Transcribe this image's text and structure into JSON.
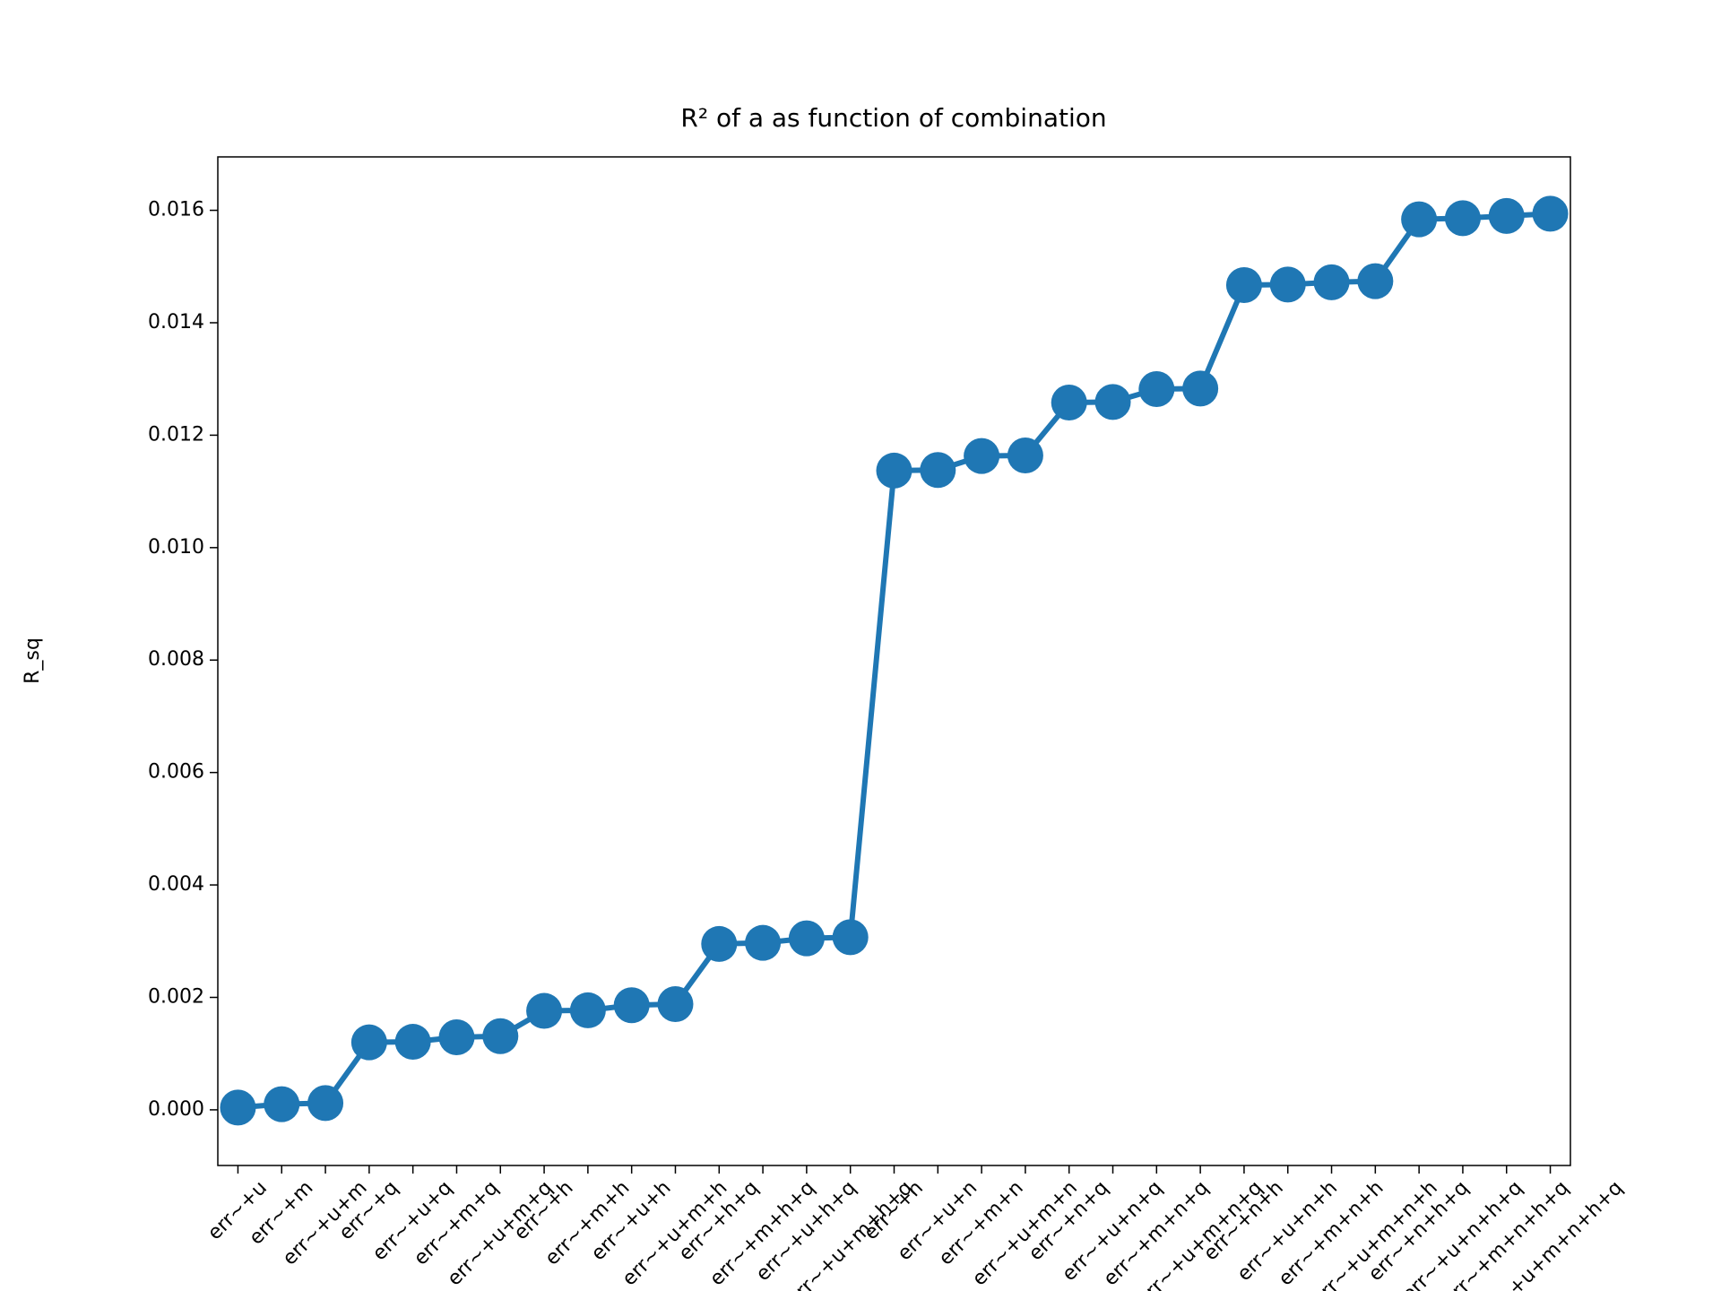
{
  "chart_data": {
    "type": "line",
    "title": "R² of a as function of combination",
    "y_label": "R_sq",
    "categories": [
      "err~+u",
      "err~+m",
      "err~+u+m",
      "err~+q",
      "err~+u+q",
      "err~+m+q",
      "err~+u+m+q",
      "err~+h",
      "err~+m+h",
      "err~+u+h",
      "err~+u+m+h",
      "err~+h+q",
      "err~+m+h+q",
      "err~+u+h+q",
      "err~+u+m+h+q",
      "err~+n",
      "err~+u+n",
      "err~+m+n",
      "err~+u+m+n",
      "err~+n+q",
      "err~+u+n+q",
      "err~+m+n+q",
      "err~+u+m+n+q",
      "err~+n+h",
      "err~+u+n+h",
      "err~+m+n+h",
      "err~+u+m+n+h",
      "err~+n+h+q",
      "err~+u+n+h+q",
      "err~+m+n+h+q",
      "err~+u+m+n+h+q"
    ],
    "series": [
      {
        "name": "R_sq",
        "color": "#1f77b4",
        "values": [
          4e-05,
          0.0001,
          0.00012,
          0.0012,
          0.00121,
          0.00129,
          0.00131,
          0.00176,
          0.00177,
          0.00186,
          0.00188,
          0.00295,
          0.00297,
          0.00305,
          0.00307,
          0.01137,
          0.01138,
          0.01163,
          0.01164,
          0.01258,
          0.01259,
          0.01282,
          0.01283,
          0.01467,
          0.01468,
          0.01472,
          0.01474,
          0.01584,
          0.01586,
          0.0159,
          0.01594
        ]
      }
    ],
    "ylim": [
      -0.00099,
      0.01695
    ],
    "yticks": [
      {
        "value": 0,
        "label": "0.000"
      },
      {
        "value": 0.002,
        "label": "0.002"
      },
      {
        "value": 0.004,
        "label": "0.004"
      },
      {
        "value": 0.006,
        "label": "0.006"
      },
      {
        "value": 0.008,
        "label": "0.008"
      },
      {
        "value": 0.01,
        "label": "0.010"
      },
      {
        "value": 0.012,
        "label": "0.012"
      },
      {
        "value": 0.014,
        "label": "0.014"
      },
      {
        "value": 0.016,
        "label": "0.016"
      }
    ],
    "grid": false
  }
}
